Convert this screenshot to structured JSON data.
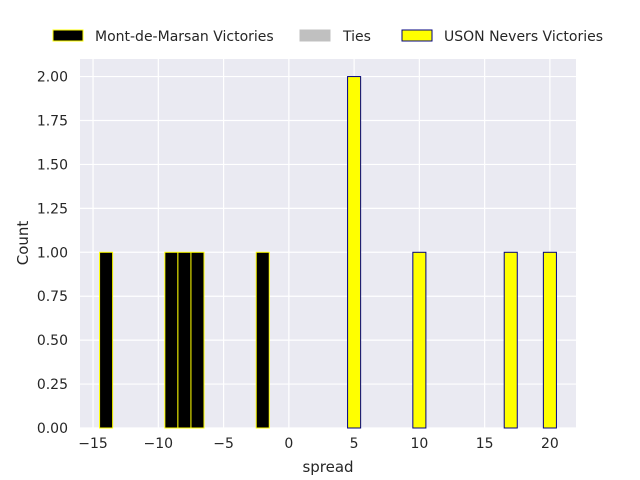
{
  "chart_data": {
    "type": "bar",
    "subtype": "histogram",
    "xlabel": "spread",
    "ylabel": "Count",
    "xlim": [
      -16,
      22
    ],
    "ylim": [
      0,
      2.1
    ],
    "x_ticks": [
      -15,
      -10,
      -5,
      0,
      5,
      10,
      15,
      20
    ],
    "y_ticks": [
      0.0,
      0.25,
      0.5,
      0.75,
      1.0,
      1.25,
      1.5,
      1.75,
      2.0
    ],
    "y_tick_labels": [
      "0.00",
      "0.25",
      "0.50",
      "0.75",
      "1.00",
      "1.25",
      "1.50",
      "1.75",
      "2.00"
    ],
    "grid": true,
    "legend_position": "top, outside plot, horizontal",
    "bin_width": 1.0,
    "series": [
      {
        "name": "Mont-de-Marsan Victories",
        "fill": "#000000",
        "edge": "#ffff00",
        "bins": [
          {
            "x": -14,
            "count": 1
          },
          {
            "x": -9,
            "count": 1
          },
          {
            "x": -8,
            "count": 1
          },
          {
            "x": -7,
            "count": 1
          },
          {
            "x": -2,
            "count": 1
          }
        ]
      },
      {
        "name": "Ties",
        "fill": "#c0c0c0",
        "edge": "#c0c0c0",
        "bins": []
      },
      {
        "name": "USON Nevers Victories",
        "fill": "#ffff00",
        "edge": "#000080",
        "bins": [
          {
            "x": 5,
            "count": 2
          },
          {
            "x": 10,
            "count": 1
          },
          {
            "x": 17,
            "count": 1
          },
          {
            "x": 20,
            "count": 1
          }
        ]
      }
    ]
  },
  "colors": {
    "plot_background": "#eaeaf2",
    "grid": "#ffffff",
    "text": "#262626"
  }
}
